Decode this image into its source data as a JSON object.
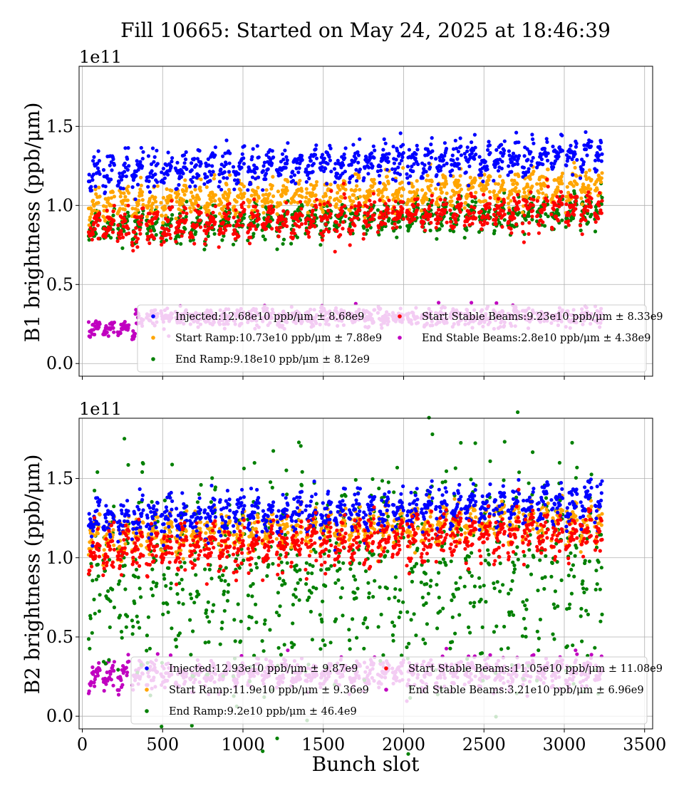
{
  "title": "Fill 10665: Started on May 24, 2025 at 18:46:39",
  "xlabel": "Bunch slot",
  "chart_data": [
    {
      "type": "scatter",
      "ylabel": "B1 brightness (ppb/μm)",
      "exponent_label": "1e11",
      "xlim": [
        -20,
        3550
      ],
      "ylim": [
        -8000000000.0,
        188000000000.0
      ],
      "x_ticks": [
        "0",
        "500",
        "1000",
        "1500",
        "2000",
        "2500",
        "3000",
        "3500"
      ],
      "y_ticks": [
        "0.0",
        "0.5",
        "1.0",
        "1.5"
      ],
      "y_tick_values": [
        0,
        50000000000.0,
        100000000000.0,
        150000000000.0
      ],
      "grid": true,
      "legend_placement": "lower-right",
      "series": [
        {
          "key": "injected",
          "color": "#0000ff",
          "legend": "Injected:12.68e10 ppb/μm ± 8.68e9",
          "mean": 126800000000.0,
          "spread": 8680000000.0
        },
        {
          "key": "start_ramp",
          "color": "#ffa500",
          "legend": "Start Ramp:10.73e10 ppb/μm ± 7.88e9",
          "mean": 107300000000.0,
          "spread": 7880000000.0
        },
        {
          "key": "end_ramp",
          "color": "#008000",
          "legend": "End Ramp:9.18e10 ppb/μm ± 8.12e9",
          "mean": 91800000000.0,
          "spread": 8120000000.0
        },
        {
          "key": "start_stable",
          "color": "#ff0000",
          "legend": "Start Stable Beams:9.23e10 ppb/μm ± 8.33e9",
          "mean": 92300000000.0,
          "spread": 8330000000.0
        },
        {
          "key": "end_stable",
          "color": "#c000c0",
          "legend": "End Stable Beams:2.8e10 ppb/μm ± 4.38e9",
          "mean": 28000000000.0,
          "spread": 4380000000.0
        }
      ]
    },
    {
      "type": "scatter",
      "ylabel": "B2 brightness (ppb/μm)",
      "exponent_label": "1e11",
      "xlim": [
        -20,
        3550
      ],
      "ylim": [
        -8000000000.0,
        188000000000.0
      ],
      "x_ticks": [
        "0",
        "500",
        "1000",
        "1500",
        "2000",
        "2500",
        "3000",
        "3500"
      ],
      "y_ticks": [
        "0.0",
        "0.5",
        "1.0",
        "1.5"
      ],
      "y_tick_values": [
        0,
        50000000000.0,
        100000000000.0,
        150000000000.0
      ],
      "grid": true,
      "legend_placement": "lower-right",
      "series": [
        {
          "key": "injected",
          "color": "#0000ff",
          "legend": "Injected:12.93e10 ppb/μm ± 9.87e9",
          "mean": 129300000000.0,
          "spread": 9870000000.0
        },
        {
          "key": "start_ramp",
          "color": "#ffa500",
          "legend": "Start Ramp:11.9e10 ppb/μm ± 9.36e9",
          "mean": 119000000000.0,
          "spread": 9360000000.0
        },
        {
          "key": "end_ramp",
          "color": "#008000",
          "legend": "End Ramp:9.2e10 ppb/μm ± 46.4e9",
          "mean": 92000000000.0,
          "spread": 46400000000.0
        },
        {
          "key": "start_stable",
          "color": "#ff0000",
          "legend": "Start Stable Beams:11.05e10 ppb/μm ± 11.08e9",
          "mean": 110500000000.0,
          "spread": 11080000000.0
        },
        {
          "key": "end_stable",
          "color": "#c000c0",
          "legend": "End Stable Beams:3.21e10 ppb/μm ± 6.96e9",
          "mean": 32100000000.0,
          "spread": 6960000000.0
        }
      ]
    }
  ],
  "x_ticks_shown_on": "bottom-panel"
}
